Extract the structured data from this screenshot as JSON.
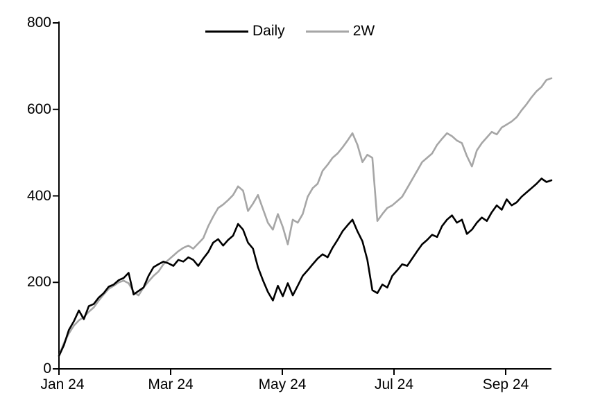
{
  "chart_data": {
    "type": "line",
    "title": "",
    "xlabel": "",
    "ylabel": "",
    "x_axis": {
      "tick_labels": [
        "Jan 24",
        "Mar 24",
        "May 24",
        "Jul 24",
        "Sep 24"
      ]
    },
    "y_axis": {
      "range": [
        0,
        800
      ],
      "ticks": [
        0,
        200,
        400,
        600,
        800
      ]
    },
    "grid": false,
    "legend": {
      "position": "top-center",
      "entries": [
        {
          "label": "Daily",
          "color": "#000000"
        },
        {
          "label": "2W",
          "color": "#a6a6a6"
        }
      ]
    },
    "series": [
      {
        "name": "Daily",
        "color": "#000000",
        "values": [
          30,
          55,
          90,
          110,
          135,
          115,
          145,
          150,
          165,
          175,
          190,
          195,
          205,
          210,
          222,
          172,
          180,
          188,
          215,
          235,
          242,
          248,
          244,
          238,
          252,
          248,
          258,
          252,
          238,
          255,
          270,
          292,
          300,
          285,
          298,
          308,
          335,
          322,
          292,
          278,
          235,
          205,
          178,
          158,
          192,
          168,
          198,
          170,
          192,
          215,
          228,
          242,
          255,
          265,
          258,
          280,
          298,
          318,
          332,
          345,
          318,
          295,
          252,
          182,
          175,
          195,
          188,
          215,
          228,
          242,
          238,
          255,
          272,
          288,
          298,
          310,
          305,
          330,
          345,
          355,
          338,
          345,
          312,
          322,
          338,
          350,
          342,
          362,
          378,
          368,
          392,
          378,
          385,
          398,
          408,
          418,
          428,
          440,
          432,
          436
        ]
      },
      {
        "name": "2W",
        "color": "#a6a6a6",
        "values": [
          30,
          60,
          82,
          100,
          112,
          120,
          132,
          142,
          158,
          172,
          185,
          192,
          200,
          204,
          198,
          178,
          170,
          188,
          202,
          215,
          225,
          242,
          252,
          262,
          272,
          280,
          285,
          278,
          290,
          302,
          330,
          352,
          372,
          380,
          390,
          402,
          422,
          412,
          365,
          382,
          402,
          370,
          338,
          322,
          358,
          328,
          288,
          345,
          338,
          358,
          398,
          418,
          428,
          458,
          472,
          488,
          498,
          512,
          528,
          545,
          518,
          478,
          495,
          488,
          342,
          358,
          372,
          378,
          388,
          398,
          418,
          438,
          458,
          478,
          488,
          498,
          518,
          532,
          545,
          538,
          528,
          522,
          492,
          468,
          505,
          522,
          535,
          548,
          542,
          558,
          565,
          572,
          582,
          598,
          612,
          628,
          642,
          652,
          668,
          672
        ]
      }
    ]
  }
}
